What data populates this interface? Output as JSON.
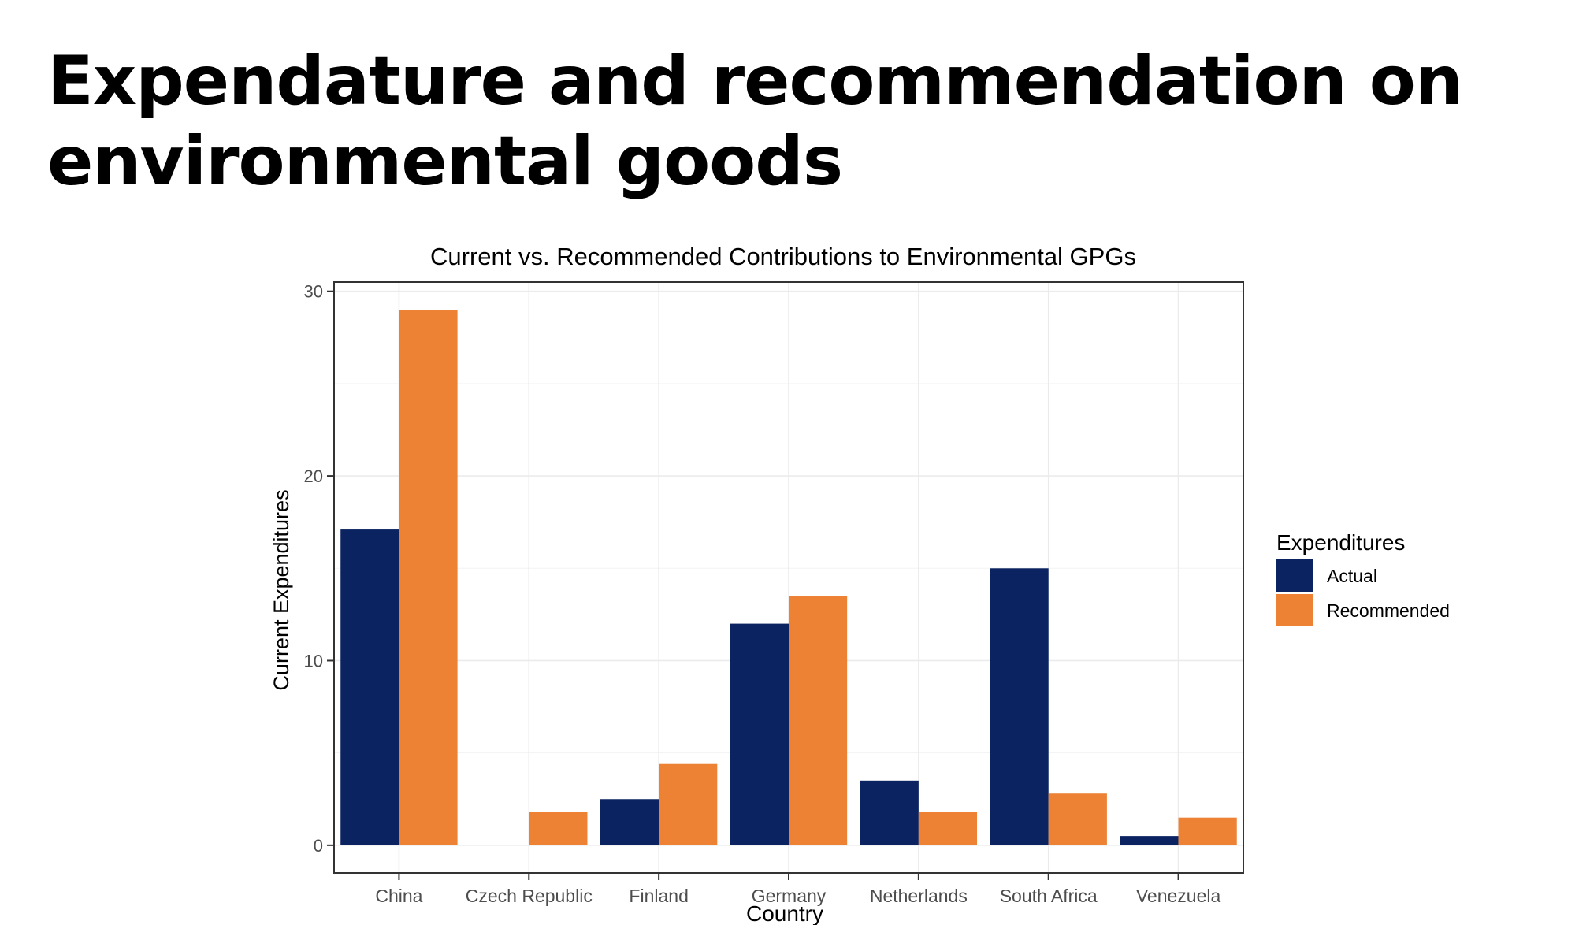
{
  "slide": {
    "title": "Expendature and recommendation on environmental goods"
  },
  "chart_data": {
    "type": "bar",
    "title": "Current vs. Recommended Contributions to Environmental GPGs",
    "xlabel": "Country",
    "ylabel": "Current Expenditures",
    "categories": [
      "China",
      "Czech Republic",
      "Finland",
      "Germany",
      "Netherlands",
      "South Africa",
      "Venezuela"
    ],
    "series": [
      {
        "name": "Actual",
        "color": "#0b2461",
        "values": [
          17.1,
          null,
          2.5,
          12.0,
          3.5,
          15.0,
          0.5
        ]
      },
      {
        "name": "Recommended",
        "color": "#ed8134",
        "values": [
          29.0,
          1.8,
          4.4,
          13.5,
          1.8,
          2.8,
          1.5
        ]
      }
    ],
    "ylim": [
      -1.5,
      30.5
    ],
    "yticks": [
      0,
      10,
      20,
      30
    ],
    "grid": true,
    "legend": {
      "title": "Expenditures",
      "position": "right"
    }
  }
}
